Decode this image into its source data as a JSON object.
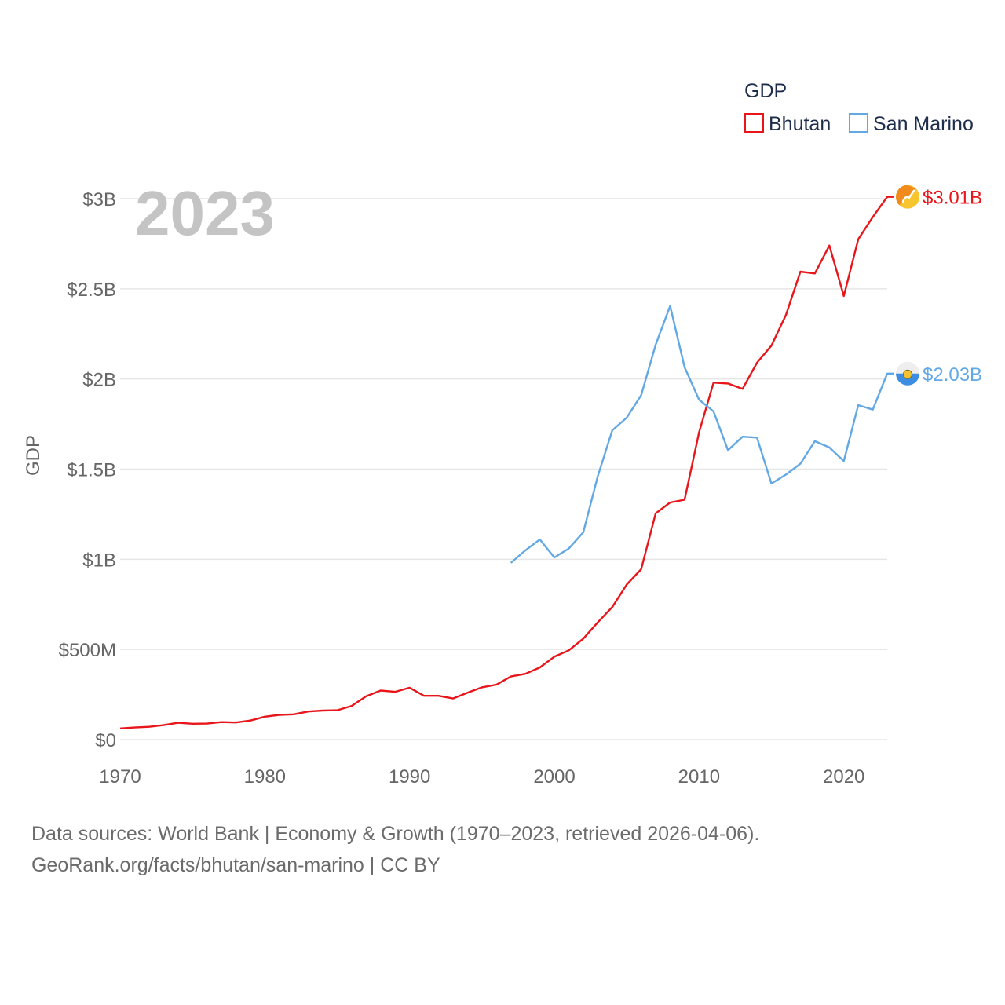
{
  "chart_data": {
    "type": "line",
    "legend_title": "GDP",
    "legend_position": "top-right",
    "ylabel": "GDP",
    "current_year": "2023",
    "xlim": [
      1970,
      2023
    ],
    "ylim": [
      0,
      3000000000
    ],
    "x_ticks": [
      {
        "value": 1970,
        "label": "1970"
      },
      {
        "value": 1980,
        "label": "1980"
      },
      {
        "value": 1990,
        "label": "1990"
      },
      {
        "value": 2000,
        "label": "2000"
      },
      {
        "value": 2010,
        "label": "2010"
      },
      {
        "value": 2020,
        "label": "2020"
      }
    ],
    "y_ticks": [
      {
        "value": 0,
        "label": "$0"
      },
      {
        "value": 500000000,
        "label": "$500M"
      },
      {
        "value": 1000000000,
        "label": "$1B"
      },
      {
        "value": 1500000000,
        "label": "$1.5B"
      },
      {
        "value": 2000000000,
        "label": "$2B"
      },
      {
        "value": 2500000000,
        "label": "$2.5B"
      },
      {
        "value": 3000000000,
        "label": "$3B"
      }
    ],
    "series": [
      {
        "name": "Bhutan",
        "color": "#e8161b",
        "end_label": "$3.01B",
        "flag_icon": "bhutan-flag-icon",
        "x": [
          1970,
          1971,
          1972,
          1973,
          1974,
          1975,
          1976,
          1977,
          1978,
          1979,
          1980,
          1981,
          1982,
          1983,
          1984,
          1985,
          1986,
          1987,
          1988,
          1989,
          1990,
          1991,
          1992,
          1993,
          1994,
          1995,
          1996,
          1997,
          1998,
          1999,
          2000,
          2001,
          2002,
          2003,
          2004,
          2005,
          2006,
          2007,
          2008,
          2009,
          2010,
          2011,
          2012,
          2013,
          2014,
          2015,
          2016,
          2017,
          2018,
          2019,
          2020,
          2021,
          2022,
          2023
        ],
        "values": [
          62000000,
          67000000,
          71000000,
          80000000,
          93000000,
          88000000,
          89000000,
          97000000,
          95000000,
          106000000,
          127000000,
          137000000,
          140000000,
          156000000,
          161000000,
          163000000,
          187000000,
          241000000,
          272000000,
          265000000,
          288000000,
          243000000,
          243000000,
          228000000,
          260000000,
          290000000,
          305000000,
          350000000,
          365000000,
          400000000,
          460000000,
          495000000,
          560000000,
          650000000,
          735000000,
          860000000,
          945000000,
          1255000000,
          1315000000,
          1330000000,
          1705000000,
          1980000000,
          1975000000,
          1945000000,
          2090000000,
          2185000000,
          2355000000,
          2595000000,
          2585000000,
          2740000000,
          2460000000,
          2775000000,
          2898000000,
          3010000000
        ]
      },
      {
        "name": "San Marino",
        "color": "#62a8e5",
        "end_label": "$2.03B",
        "flag_icon": "san-marino-flag-icon",
        "x": [
          1997,
          1998,
          1999,
          2000,
          2001,
          2002,
          2003,
          2004,
          2005,
          2006,
          2007,
          2008,
          2009,
          2010,
          2011,
          2012,
          2013,
          2014,
          2015,
          2016,
          2017,
          2018,
          2019,
          2020,
          2021,
          2022,
          2023
        ],
        "values": [
          980000000,
          1050000000,
          1110000000,
          1010000000,
          1060000000,
          1150000000,
          1460000000,
          1715000000,
          1785000000,
          1910000000,
          2190000000,
          2405000000,
          2065000000,
          1885000000,
          1820000000,
          1605000000,
          1680000000,
          1675000000,
          1420000000,
          1470000000,
          1530000000,
          1655000000,
          1620000000,
          1545000000,
          1855000000,
          1830000000,
          2030000000
        ]
      }
    ]
  },
  "footer": {
    "line1": "Data sources: World Bank | Economy & Growth (1970–2023, retrieved 2026-04-06).",
    "line2": "GeoRank.org/facts/bhutan/san-marino | CC BY"
  }
}
